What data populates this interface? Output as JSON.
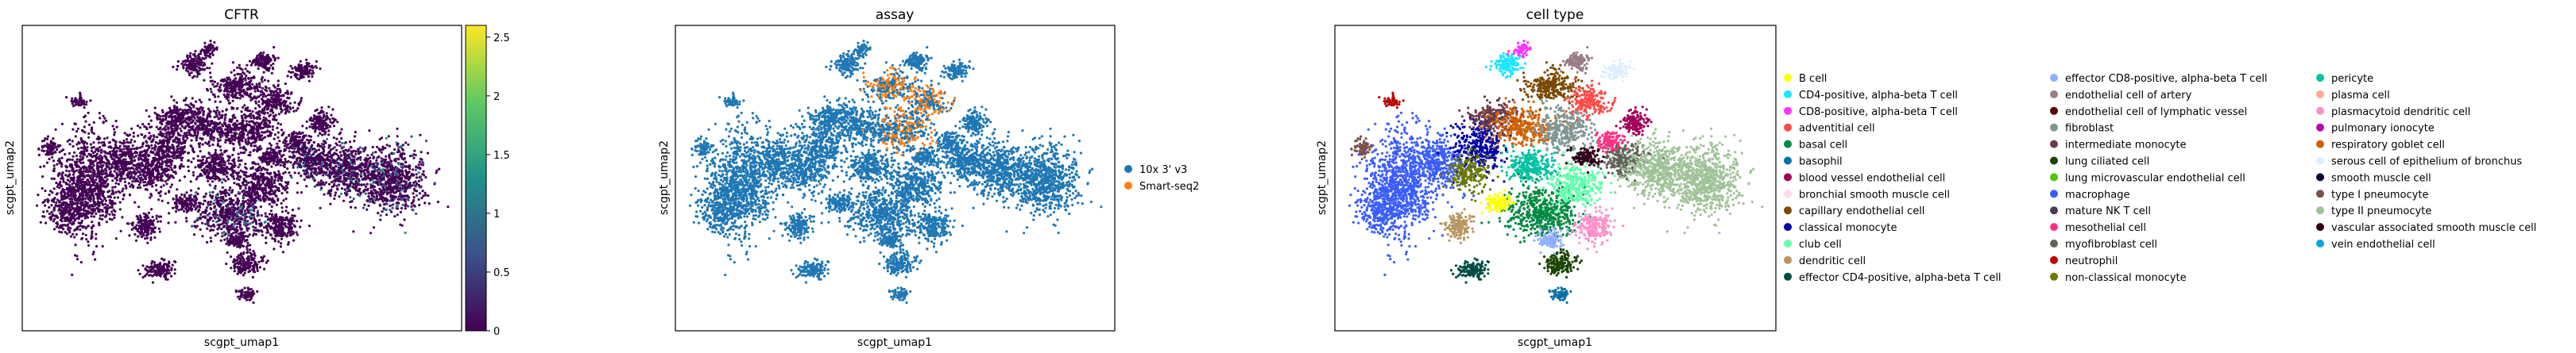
{
  "colors": {
    "assay_10x": "#1f77b4",
    "assay_smart": "#ff7f0e",
    "viridis": [
      "#440154",
      "#3b528b",
      "#21918c",
      "#5ec962",
      "#fde725"
    ]
  },
  "chart_data": [
    {
      "type": "scatter",
      "title": "CFTR",
      "xlabel": "scgpt_umap1",
      "ylabel": "scgpt_umap2",
      "colorbar": {
        "ticks": [
          0,
          0.5,
          1,
          1.5,
          2,
          2.5
        ],
        "tick_labels": [
          "0",
          "0.5",
          "1",
          "1.5",
          "2",
          "2.5"
        ],
        "range": [
          0,
          2.6
        ],
        "colormap": "viridis"
      },
      "grid": false
    },
    {
      "type": "scatter",
      "title": "assay",
      "xlabel": "scgpt_umap1",
      "ylabel": "scgpt_umap2",
      "legend_position": "right",
      "legend": [
        {
          "label": "10x 3' v3",
          "color": "#1f77b4"
        },
        {
          "label": "Smart-seq2",
          "color": "#ff7f0e"
        }
      ],
      "grid": false
    },
    {
      "type": "scatter",
      "title": "cell type",
      "xlabel": "scgpt_umap1",
      "ylabel": "scgpt_umap2",
      "legend_position": "right",
      "legend": [
        {
          "label": "B cell",
          "color": "#ffff00"
        },
        {
          "label": "CD4-positive, alpha-beta T cell",
          "color": "#1ce6ff"
        },
        {
          "label": "CD8-positive, alpha-beta T cell",
          "color": "#ff34ff"
        },
        {
          "label": "adventitial cell",
          "color": "#ff4a46"
        },
        {
          "label": "basal cell",
          "color": "#008941"
        },
        {
          "label": "basophil",
          "color": "#006fa6"
        },
        {
          "label": "blood vessel endothelial cell",
          "color": "#a30059"
        },
        {
          "label": "bronchial smooth muscle cell",
          "color": "#ffdbe5"
        },
        {
          "label": "capillary endothelial cell",
          "color": "#7a4900"
        },
        {
          "label": "classical monocyte",
          "color": "#0000a6"
        },
        {
          "label": "club cell",
          "color": "#63ffac"
        },
        {
          "label": "dendritic cell",
          "color": "#b79762"
        },
        {
          "label": "effector CD4-positive, alpha-beta T cell",
          "color": "#004d43"
        },
        {
          "label": "effector CD8-positive, alpha-beta T cell",
          "color": "#8fb0ff"
        },
        {
          "label": "endothelial cell of artery",
          "color": "#997d87"
        },
        {
          "label": "endothelial cell of lymphatic vessel",
          "color": "#5a0007"
        },
        {
          "label": "fibroblast",
          "color": "#809693"
        },
        {
          "label": "intermediate monocyte",
          "color": "#6a3a4c"
        },
        {
          "label": "lung ciliated cell",
          "color": "#1b4400"
        },
        {
          "label": "lung microvascular endothelial cell",
          "color": "#4fc601"
        },
        {
          "label": "macrophage",
          "color": "#3b5dff"
        },
        {
          "label": "mature NK T cell",
          "color": "#4a3b53"
        },
        {
          "label": "mesothelial cell",
          "color": "#ff2f80"
        },
        {
          "label": "myofibroblast cell",
          "color": "#61615a"
        },
        {
          "label": "neutrophil",
          "color": "#ba0900"
        },
        {
          "label": "non-classical monocyte",
          "color": "#6b7900"
        },
        {
          "label": "pericyte",
          "color": "#00c2a0"
        },
        {
          "label": "plasma cell",
          "color": "#ffaa92"
        },
        {
          "label": "plasmacytoid dendritic cell",
          "color": "#ff90c9"
        },
        {
          "label": "pulmonary ionocyte",
          "color": "#b903aa"
        },
        {
          "label": "respiratory goblet cell",
          "color": "#d16100"
        },
        {
          "label": "serous cell of epithelium of bronchus",
          "color": "#ddefff"
        },
        {
          "label": "smooth muscle cell",
          "color": "#000035"
        },
        {
          "label": "type I pneumocyte",
          "color": "#7b4f4b"
        },
        {
          "label": "type II pneumocyte",
          "color": "#a1c299"
        },
        {
          "label": "vascular associated smooth muscle cell",
          "color": "#300018"
        },
        {
          "label": "vein endothelial cell",
          "color": "#0aa6d8"
        }
      ],
      "grid": false
    }
  ]
}
